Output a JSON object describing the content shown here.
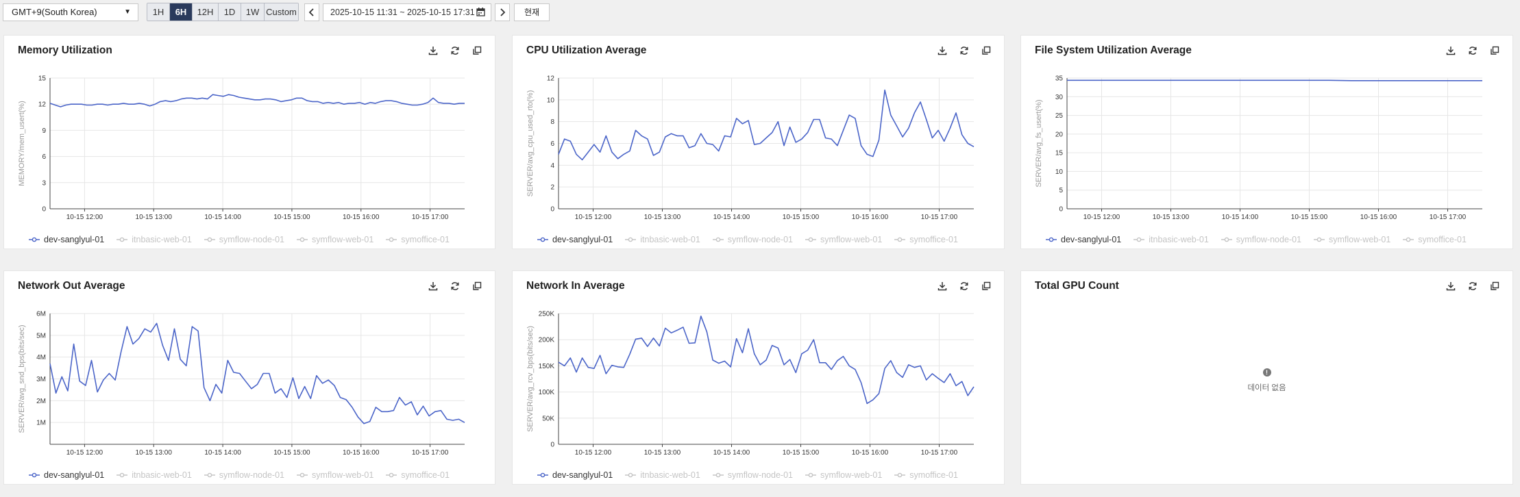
{
  "toolbar": {
    "timezone": "GMT+9(South Korea)",
    "ranges": [
      "1H",
      "6H",
      "12H",
      "1D",
      "1W",
      "Custom"
    ],
    "active_range": "6H",
    "date_range": "2025-10-15 11:31 ~ 2025-10-15 17:31",
    "now_label": "현재"
  },
  "legend": [
    {
      "name": "dev-sanglyul-01",
      "active": true
    },
    {
      "name": "itnbasic-web-01",
      "active": false
    },
    {
      "name": "symflow-node-01",
      "active": false
    },
    {
      "name": "symflow-web-01",
      "active": false
    },
    {
      "name": "symoffice-01",
      "active": false
    }
  ],
  "colors": {
    "series": "#4a64c8",
    "grid": "#e6e6e6",
    "axis": "#444444",
    "legend_off": "#c4c4c4",
    "active": "#2a3a5c"
  },
  "cards": [
    {
      "title": "Memory Utilization",
      "chart_data": {
        "type": "line",
        "title": "Memory Utilization",
        "ylabel": "MEMORY/mem_usert(%)",
        "ylim": [
          0,
          15
        ],
        "yticks": [
          0,
          3,
          6,
          9,
          12,
          15
        ],
        "ytick_labels": [
          "0",
          "3",
          "6",
          "9",
          "12",
          "15"
        ],
        "xlim": [
          11.5,
          17.5
        ],
        "xticks": [
          12,
          13,
          14,
          15,
          16,
          17
        ],
        "xtick_labels": [
          "10-15 12:00",
          "10-15 13:00",
          "10-15 14:00",
          "10-15 15:00",
          "10-15 16:00",
          "10-15 17:00"
        ],
        "series": [
          {
            "name": "dev-sanglyul-01",
            "values": [
              12.1,
              11.9,
              11.7,
              11.9,
              12.0,
              12.0,
              12.0,
              11.9,
              11.9,
              12.0,
              12.0,
              11.9,
              12.0,
              12.0,
              12.1,
              12.0,
              12.0,
              12.1,
              12.0,
              11.8,
              12.0,
              12.3,
              12.4,
              12.3,
              12.4,
              12.6,
              12.7,
              12.7,
              12.6,
              12.7,
              12.6,
              13.1,
              13.0,
              12.9,
              13.1,
              13.0,
              12.8,
              12.7,
              12.6,
              12.5,
              12.5,
              12.6,
              12.6,
              12.5,
              12.3,
              12.4,
              12.5,
              12.7,
              12.7,
              12.4,
              12.3,
              12.3,
              12.1,
              12.2,
              12.1,
              12.2,
              12.0,
              12.1,
              12.1,
              12.2,
              12.0,
              12.2,
              12.1,
              12.3,
              12.4,
              12.4,
              12.3,
              12.1,
              12.0,
              11.9,
              11.9,
              12.0,
              12.2,
              12.7,
              12.2,
              12.1,
              12.1,
              12.0,
              12.1,
              12.1
            ]
          }
        ]
      }
    },
    {
      "title": "CPU Utilization Average",
      "chart_data": {
        "type": "line",
        "title": "CPU Utilization Average",
        "ylabel": "SERVER/avg_cpu_used_rto(%)",
        "ylim": [
          0,
          12
        ],
        "yticks": [
          0,
          2,
          4,
          6,
          8,
          10,
          12
        ],
        "ytick_labels": [
          "0",
          "2",
          "4",
          "6",
          "8",
          "10",
          "12"
        ],
        "xlim": [
          11.5,
          17.5
        ],
        "xticks": [
          12,
          13,
          14,
          15,
          16,
          17
        ],
        "xtick_labels": [
          "10-15 12:00",
          "10-15 13:00",
          "10-15 14:00",
          "10-15 15:00",
          "10-15 16:00",
          "10-15 17:00"
        ],
        "series": [
          {
            "name": "dev-sanglyul-01",
            "values": [
              5.0,
              6.4,
              6.2,
              5.0,
              4.5,
              5.2,
              5.9,
              5.2,
              6.7,
              5.2,
              4.6,
              5.0,
              5.3,
              7.2,
              6.7,
              6.4,
              4.9,
              5.2,
              6.6,
              6.9,
              6.7,
              6.7,
              5.6,
              5.8,
              6.9,
              6.0,
              5.9,
              5.3,
              6.7,
              6.6,
              8.3,
              7.8,
              8.1,
              5.9,
              6.0,
              6.5,
              7.0,
              8.0,
              5.8,
              7.5,
              6.1,
              6.4,
              7.0,
              8.2,
              8.2,
              6.5,
              6.4,
              5.8,
              7.2,
              8.6,
              8.3,
              5.8,
              5.0,
              4.8,
              6.3,
              10.9,
              8.6,
              7.6,
              6.6,
              7.4,
              8.8,
              9.8,
              8.2,
              6.5,
              7.2,
              6.2,
              7.4,
              8.8,
              6.8,
              6.0,
              5.7
            ]
          }
        ]
      }
    },
    {
      "title": "File System Utilization Average",
      "chart_data": {
        "type": "line",
        "title": "File System Utilization Average",
        "ylabel": "SERVER/avg_fs_usert(%)",
        "ylim": [
          0,
          35
        ],
        "yticks": [
          0,
          5,
          10,
          15,
          20,
          25,
          30,
          35
        ],
        "ytick_labels": [
          "0",
          "5",
          "10",
          "15",
          "20",
          "25",
          "30",
          "35"
        ],
        "xlim": [
          11.5,
          17.5
        ],
        "xticks": [
          12,
          13,
          14,
          15,
          16,
          17
        ],
        "xtick_labels": [
          "10-15 12:00",
          "10-15 13:00",
          "10-15 14:00",
          "10-15 15:00",
          "10-15 16:00",
          "10-15 17:00"
        ],
        "series": [
          {
            "name": "dev-sanglyul-01",
            "values": [
              34.4,
              34.4,
              34.4,
              34.4,
              34.4,
              34.4,
              34.4,
              34.4,
              34.4,
              34.4,
              34.4,
              34.4,
              34.4,
              34.3,
              34.3,
              34.3,
              34.3,
              34.3,
              34.3,
              34.3
            ]
          }
        ]
      }
    },
    {
      "title": "Network Out Average",
      "chart_data": {
        "type": "line",
        "title": "Network Out Average",
        "ylabel": "SERVER/avg_snd_bps(bits/sec)",
        "ylim": [
          0,
          6000000
        ],
        "yticks": [
          1000000,
          2000000,
          3000000,
          4000000,
          5000000,
          6000000
        ],
        "ytick_labels": [
          "1M",
          "2M",
          "3M",
          "4M",
          "5M",
          "6M"
        ],
        "xlim": [
          11.5,
          17.5
        ],
        "xticks": [
          12,
          13,
          14,
          15,
          16,
          17
        ],
        "xtick_labels": [
          "10-15 12:00",
          "10-15 13:00",
          "10-15 14:00",
          "10-15 15:00",
          "10-15 16:00",
          "10-15 17:00"
        ],
        "series": [
          {
            "name": "dev-sanglyul-01",
            "values": [
              3700000,
              2350000,
              3100000,
              2450000,
              4600000,
              2900000,
              2700000,
              3850000,
              2400000,
              2950000,
              3250000,
              2950000,
              4250000,
              5400000,
              4600000,
              4850000,
              5300000,
              5150000,
              5550000,
              4550000,
              3850000,
              5300000,
              3900000,
              3600000,
              5400000,
              5200000,
              2600000,
              2000000,
              2750000,
              2350000,
              3850000,
              3300000,
              3250000,
              2900000,
              2550000,
              2750000,
              3250000,
              3250000,
              2350000,
              2550000,
              2150000,
              3050000,
              2100000,
              2650000,
              2100000,
              3150000,
              2800000,
              2950000,
              2700000,
              2150000,
              2050000,
              1700000,
              1250000,
              950000,
              1050000,
              1700000,
              1500000,
              1500000,
              1550000,
              2150000,
              1800000,
              1950000,
              1350000,
              1750000,
              1300000,
              1500000,
              1550000,
              1150000,
              1100000,
              1150000,
              1000000
            ]
          }
        ]
      }
    },
    {
      "title": "Network In Average",
      "chart_data": {
        "type": "line",
        "title": "Network In Average",
        "ylabel": "SERVER/avg_rcv_bps(bits/sec)",
        "ylim": [
          0,
          250000
        ],
        "yticks": [
          0,
          50000,
          100000,
          150000,
          200000,
          250000
        ],
        "ytick_labels": [
          "0",
          "50K",
          "100K",
          "150K",
          "200K",
          "250K"
        ],
        "xlim": [
          11.5,
          17.5
        ],
        "xticks": [
          12,
          13,
          14,
          15,
          16,
          17
        ],
        "xtick_labels": [
          "10-15 12:00",
          "10-15 13:00",
          "10-15 14:00",
          "10-15 15:00",
          "10-15 16:00",
          "10-15 17:00"
        ],
        "series": [
          {
            "name": "dev-sanglyul-01",
            "values": [
              157000,
              150000,
              165000,
              138000,
              165000,
              147000,
              145000,
              170000,
              135000,
              151000,
              148000,
              147000,
              172000,
              201000,
              203000,
              187000,
              203000,
              188000,
              222000,
              213000,
              218000,
              224000,
              193000,
              194000,
              245000,
              215000,
              161000,
              155000,
              159000,
              148000,
              202000,
              175000,
              221000,
              173000,
              152000,
              161000,
              189000,
              184000,
              152000,
              162000,
              137000,
              173000,
              180000,
              200000,
              156000,
              156000,
              143000,
              160000,
              168000,
              150000,
              143000,
              118000,
              78000,
              85000,
              97000,
              145000,
              160000,
              137000,
              128000,
              152000,
              147000,
              150000,
              123000,
              135000,
              126000,
              118000,
              135000,
              112000,
              120000,
              93000,
              110000
            ]
          }
        ]
      }
    }
  ],
  "gpu_card": {
    "title": "Total GPU Count",
    "nodata_icon": "!",
    "nodata_text": "데이터 없음"
  }
}
